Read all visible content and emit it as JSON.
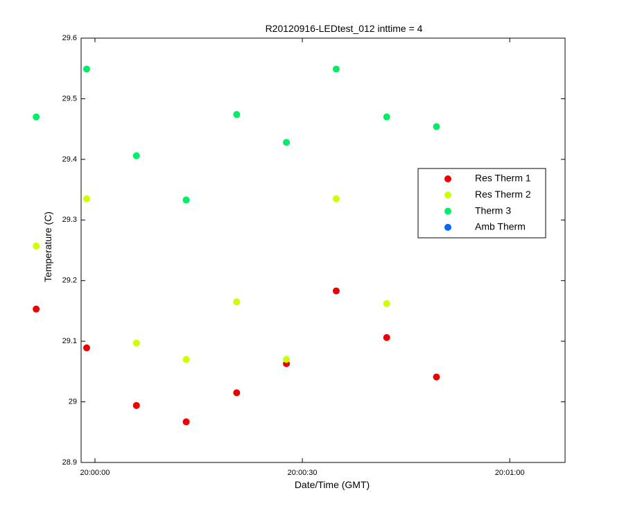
{
  "chart_data": {
    "type": "scatter",
    "title": "R20120916-LEDtest_012 inttime = 4",
    "xlabel": "Date/Time (GMT)",
    "ylabel": "Temperature (C)",
    "xlim": [
      "19:59:58",
      "20:01:08"
    ],
    "ylim": [
      28.9,
      29.6
    ],
    "x_ticks": [
      "20:00:00",
      "20:00:30",
      "20:01:00"
    ],
    "y_ticks": [
      "28.9",
      "29",
      "29.1",
      "29.2",
      "29.3",
      "29.4",
      "29.5",
      "29.6"
    ],
    "grid": false,
    "legend_position": "right-center",
    "series": [
      {
        "name": "Res Therm 1",
        "color": "#ee0000",
        "x": [
          "19:59:51.5",
          "19:59:58.8",
          "20:00:06.0",
          "20:00:13.2",
          "20:00:20.5",
          "20:00:27.7",
          "20:00:34.9",
          "20:00:42.2",
          "20:00:49.4"
        ],
        "y": [
          29.153,
          29.089,
          28.994,
          28.967,
          29.015,
          29.063,
          29.183,
          29.106,
          29.041
        ]
      },
      {
        "name": "Res Therm 2",
        "color": "#ccff00",
        "x": [
          "19:59:51.5",
          "19:59:58.8",
          "20:00:06.0",
          "20:00:13.2",
          "20:00:20.5",
          "20:00:27.7",
          "20:00:34.9",
          "20:00:42.2"
        ],
        "y": [
          29.257,
          29.335,
          29.097,
          29.07,
          29.165,
          29.07,
          29.335,
          29.162
        ]
      },
      {
        "name": "Therm 3",
        "color": "#00ee66",
        "x": [
          "19:59:51.5",
          "19:59:58.8",
          "20:00:06.0",
          "20:00:13.2",
          "20:00:20.5",
          "20:00:27.7",
          "20:00:34.9",
          "20:00:42.2",
          "20:00:49.4"
        ],
        "y": [
          29.47,
          29.549,
          29.406,
          29.333,
          29.474,
          29.428,
          29.549,
          29.47,
          29.454
        ]
      },
      {
        "name": "Amb Therm",
        "color": "#0066ff",
        "x": [],
        "y": []
      }
    ]
  }
}
